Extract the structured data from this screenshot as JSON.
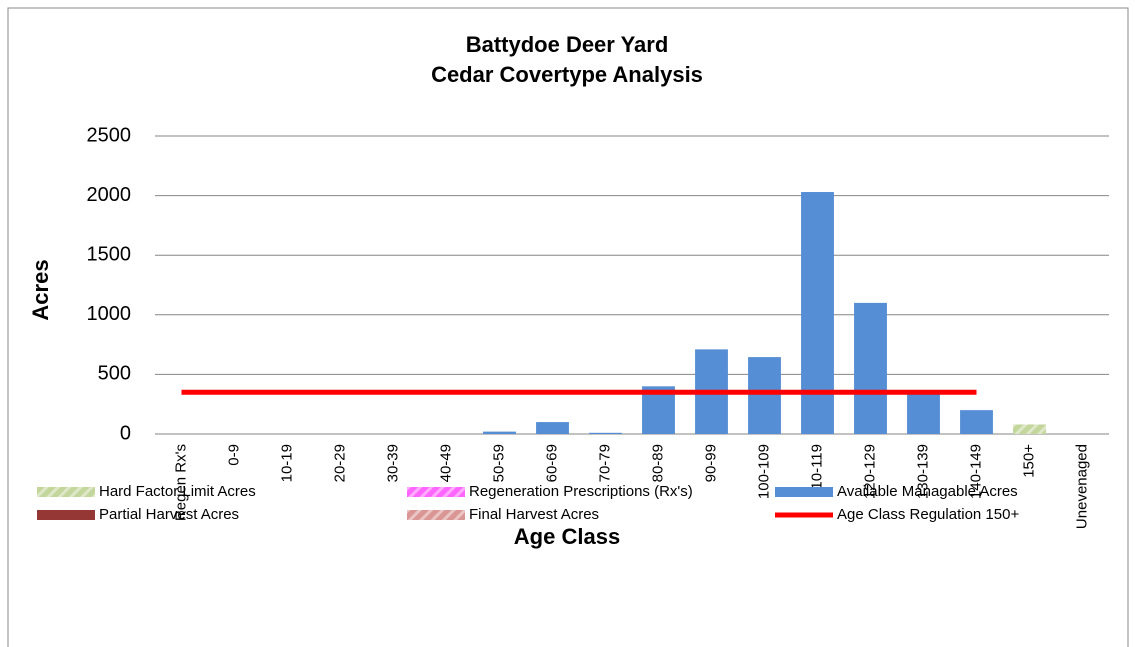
{
  "chart_data": {
    "type": "bar",
    "stacked": true,
    "title": "Battydoe Deer Yard",
    "subtitle": "Cedar Covertype Analysis",
    "x_label": "Age Class",
    "y_label": "Acres",
    "categories": [
      "Regen Rx's",
      "0-9",
      "10-19",
      "20-29",
      "30-39",
      "40-49",
      "50-59",
      "60-69",
      "70-79",
      "80-89",
      "90-99",
      "100-109",
      "110-119",
      "120-129",
      "130-139",
      "140-149",
      "150+",
      "Unevenaged"
    ],
    "ylim": [
      0,
      2500
    ],
    "yticks": [
      0,
      500,
      1000,
      1500,
      2000,
      2500
    ],
    "grid": true,
    "legend": "bottom",
    "series": [
      {
        "name": "Hard Factor Limit Acres",
        "type": "bar",
        "color": "#c3d69b",
        "hatch": true,
        "values": [
          null,
          null,
          null,
          null,
          null,
          null,
          null,
          null,
          null,
          null,
          null,
          null,
          null,
          null,
          null,
          null,
          80,
          null
        ]
      },
      {
        "name": "Regeneration Prescriptions (Rx's)",
        "type": "bar",
        "color": "#ff66ff",
        "hatch": true,
        "values": [
          null,
          null,
          null,
          null,
          null,
          null,
          null,
          null,
          null,
          null,
          null,
          null,
          null,
          null,
          null,
          null,
          null,
          null
        ]
      },
      {
        "name": "Available Managable Acres",
        "type": "bar",
        "color": "#558ed5",
        "hatch": false,
        "values": [
          null,
          null,
          null,
          null,
          null,
          null,
          20,
          100,
          10,
          400,
          710,
          645,
          2030,
          1100,
          340,
          200,
          null,
          null
        ]
      },
      {
        "name": "Partial Harvest Acres",
        "type": "bar",
        "color": "#953735",
        "hatch": false,
        "values": [
          null,
          null,
          null,
          null,
          null,
          null,
          null,
          null,
          null,
          null,
          null,
          null,
          null,
          null,
          null,
          null,
          null,
          null
        ]
      },
      {
        "name": "Final Harvest Acres",
        "type": "bar",
        "color": "#d99694",
        "hatch": true,
        "values": [
          null,
          null,
          null,
          null,
          null,
          null,
          null,
          null,
          null,
          null,
          null,
          null,
          null,
          null,
          null,
          null,
          null,
          null
        ]
      },
      {
        "name": "Age Class Regulation 150+",
        "type": "line",
        "color": "#ff0000",
        "hatch": false,
        "values": [
          350,
          350,
          350,
          350,
          350,
          350,
          350,
          350,
          350,
          350,
          350,
          350,
          350,
          350,
          350,
          350,
          null,
          null
        ]
      }
    ]
  }
}
